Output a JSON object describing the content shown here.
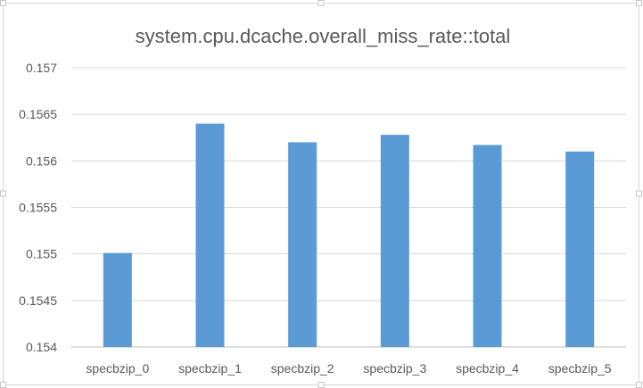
{
  "chart_data": {
    "type": "bar",
    "title": "system.cpu.dcache.overall_miss_rate::total",
    "xlabel": "",
    "ylabel": "",
    "categories": [
      "specbzip_0",
      "specbzip_1",
      "specbzip_2",
      "specbzip_3",
      "specbzip_4",
      "specbzip_5"
    ],
    "values": [
      0.15501,
      0.1564,
      0.1562,
      0.15628,
      0.15617,
      0.1561
    ],
    "ylim": [
      0.154,
      0.157
    ],
    "y_ticks": [
      "0.154",
      "0.1545",
      "0.155",
      "0.1555",
      "0.156",
      "0.1565",
      "0.157"
    ],
    "grid": true,
    "legend": "none",
    "bar_color": "#5b9bd5"
  }
}
